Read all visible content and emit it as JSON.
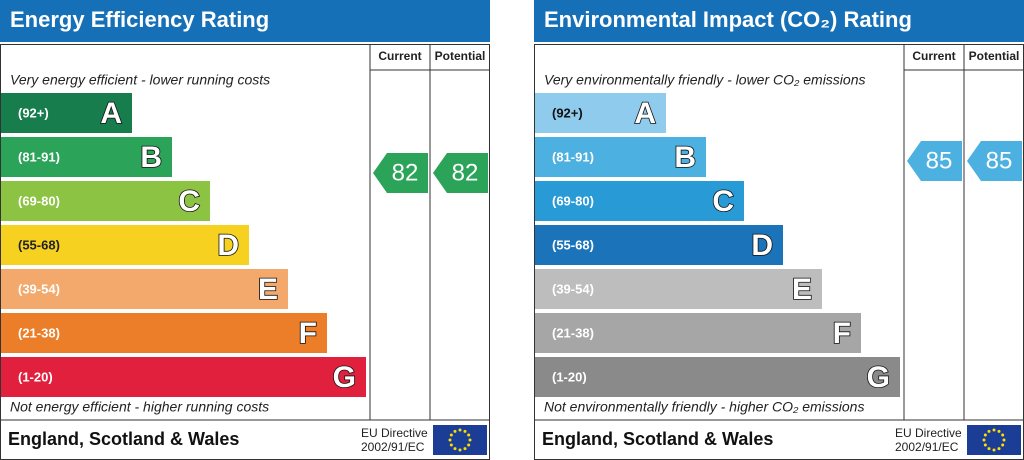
{
  "panels": [
    {
      "title": "Energy Efficiency Rating",
      "columns": [
        "Current",
        "Potential"
      ],
      "top_note": "Very energy efficient - lower running costs",
      "bottom_note": "Not energy efficient - higher running costs",
      "bands": [
        {
          "range": "(92+)",
          "letter": "A",
          "color": "#177d4c",
          "text_color": "#ffffff"
        },
        {
          "range": "(81-91)",
          "letter": "B",
          "color": "#2ba45a",
          "text_color": "#ffffff"
        },
        {
          "range": "(69-80)",
          "letter": "C",
          "color": "#8cc342",
          "text_color": "#ffffff"
        },
        {
          "range": "(55-68)",
          "letter": "D",
          "color": "#f6d11f",
          "text_color": "#222222"
        },
        {
          "range": "(39-54)",
          "letter": "E",
          "color": "#f2a96b",
          "text_color": "#ffffff"
        },
        {
          "range": "(21-38)",
          "letter": "F",
          "color": "#ec7e29",
          "text_color": "#ffffff"
        },
        {
          "range": "(1-20)",
          "letter": "G",
          "color": "#e1203e",
          "text_color": "#ffffff"
        }
      ],
      "current": 82,
      "potential": 82,
      "footer": "England, Scotland & Wales",
      "directive": [
        "EU Directive",
        "2002/91/EC"
      ]
    },
    {
      "title": "Environmental Impact (CO₂) Rating",
      "columns": [
        "Current",
        "Potential"
      ],
      "top_note": "Very environmentally friendly - lower CO₂ emissions",
      "bottom_note": "Not environmentally friendly - higher CO₂ emissions",
      "bands": [
        {
          "range": "(92+)",
          "letter": "A",
          "color": "#8ecbec",
          "text_color": "#111111"
        },
        {
          "range": "(81-91)",
          "letter": "B",
          "color": "#4cb1e1",
          "text_color": "#ffffff"
        },
        {
          "range": "(69-80)",
          "letter": "C",
          "color": "#289bd6",
          "text_color": "#ffffff"
        },
        {
          "range": "(55-68)",
          "letter": "D",
          "color": "#1b74ba",
          "text_color": "#ffffff"
        },
        {
          "range": "(39-54)",
          "letter": "E",
          "color": "#bdbdbd",
          "text_color": "#ffffff"
        },
        {
          "range": "(21-38)",
          "letter": "F",
          "color": "#a6a6a6",
          "text_color": "#ffffff"
        },
        {
          "range": "(1-20)",
          "letter": "G",
          "color": "#8a8a8a",
          "text_color": "#ffffff"
        }
      ],
      "current": 85,
      "potential": 85,
      "footer": "England, Scotland & Wales",
      "directive": [
        "EU Directive",
        "2002/91/EC"
      ]
    }
  ]
}
